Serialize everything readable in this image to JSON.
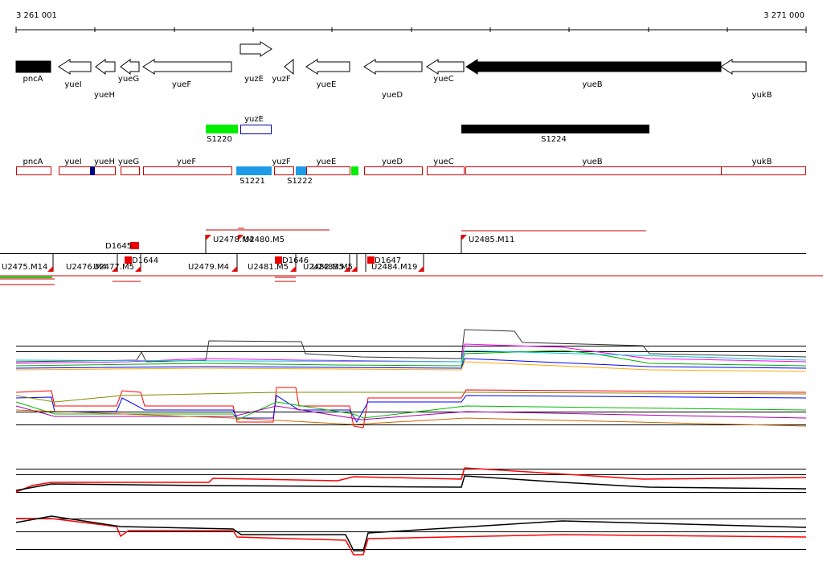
{
  "ruler": {
    "start": "3 261 001",
    "end": "3 271 000"
  },
  "genes": [
    "pncA",
    "yueI",
    "yueH",
    "yueG",
    "yueF",
    "yuzE",
    "yuzF",
    "yueE",
    "yueD",
    "yueC",
    "yueB",
    "yukB"
  ],
  "segments": {
    "upper_label": "yuzE",
    "labels": [
      "S1220",
      "S1224"
    ]
  },
  "annotation": {
    "genes": [
      "pncA",
      "yueI",
      "yueH",
      "yueG",
      "yueF",
      "yuzF",
      "yueE",
      "yueD",
      "yueC",
      "yueB",
      "yukB"
    ],
    "segments": [
      "S1221",
      "S1222"
    ]
  },
  "transcripts": [
    "D1645",
    "U2478.M4",
    "U2480.M5",
    "U2485.M11",
    "U2475.M14",
    "U2476.M4",
    "U2477.M5",
    "D1644",
    "U2479.M4",
    "U2481.M5",
    "D1646",
    "U2482.M5",
    "U2483.M5",
    "D1647",
    "U2484.M19"
  ]
}
